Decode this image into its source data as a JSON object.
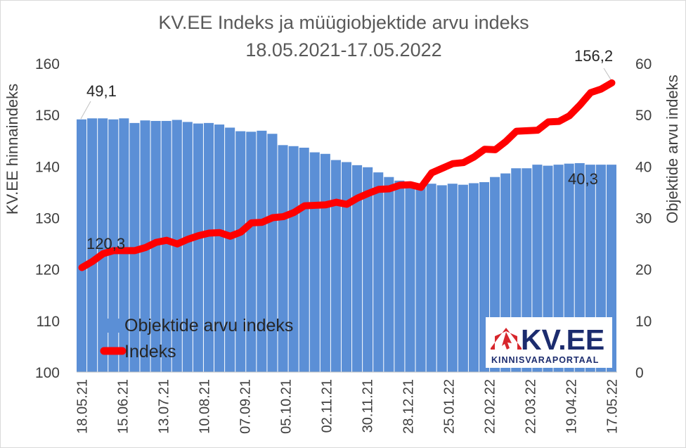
{
  "chart_data": {
    "type": "bar+line",
    "title": "KV.EE Indeks ja müügiobjektide arvu indeks",
    "subtitle": "18.05.2021-17.05.2022",
    "ylabel_left": "KV.EE hinnaindeks",
    "ylabel_right": "Objektide arvu indeks",
    "ylim_left": [
      100,
      160
    ],
    "ylim_right": [
      0,
      60
    ],
    "yticks_left": [
      "100",
      "110",
      "120",
      "130",
      "140",
      "150",
      "160"
    ],
    "yticks_right": [
      "0",
      "10",
      "20",
      "30",
      "40",
      "50",
      "60"
    ],
    "x_tick_labels": [
      "18.05.21",
      "15.06.21",
      "13.07.21",
      "10.08.21",
      "07.09.21",
      "05.10.21",
      "02.11.21",
      "30.11.21",
      "28.12.21",
      "25.01.22",
      "22.02.22",
      "22.03.22",
      "19.04.22",
      "17.05.22"
    ],
    "bar_series": {
      "name": "Objektide arvu indeks",
      "color": "#5b8fd6",
      "axis": "right",
      "values": [
        49.1,
        49.3,
        49.3,
        49.1,
        49.3,
        48.4,
        48.9,
        48.8,
        48.8,
        49.0,
        48.6,
        48.3,
        48.4,
        48.1,
        47.5,
        46.8,
        46.7,
        46.9,
        46.3,
        44.1,
        43.9,
        43.6,
        42.7,
        42.4,
        41.2,
        40.8,
        40.2,
        39.8,
        38.8,
        37.9,
        37.2,
        36.6,
        36.3,
        36.6,
        36.3,
        36.6,
        36.4,
        36.7,
        36.9,
        37.9,
        38.6,
        39.6,
        39.6,
        40.3,
        40.1,
        40.3,
        40.5,
        40.6,
        40.3,
        40.3,
        40.3
      ]
    },
    "line_series": {
      "name": "Indeks",
      "color": "#ff0000",
      "axis": "left",
      "values": [
        120.3,
        121.5,
        123.0,
        123.6,
        123.6,
        123.6,
        124.2,
        125.2,
        125.6,
        124.9,
        125.8,
        126.5,
        127.0,
        127.1,
        126.4,
        127.2,
        129.0,
        129.1,
        130.0,
        130.2,
        131.0,
        132.3,
        132.4,
        132.5,
        133.0,
        132.6,
        133.8,
        134.7,
        135.5,
        135.6,
        136.3,
        136.4,
        135.9,
        138.7,
        139.6,
        140.5,
        140.7,
        141.8,
        143.3,
        143.2,
        144.8,
        146.8,
        146.9,
        147.0,
        148.6,
        148.7,
        149.8,
        151.9,
        154.3,
        155.0,
        156.2
      ]
    },
    "annotations": {
      "bar_first": "49,1",
      "bar_last": "40,3",
      "line_first": "120,3",
      "line_last": "156,2"
    },
    "legend": {
      "position": "bottom-left",
      "bar_label": "Objektide arvu indeks",
      "line_label": "Indeks"
    },
    "grid": false
  },
  "logo": {
    "text": "KV.EE",
    "subtitle": "KINNISVARAPORTAAL",
    "brand_color": "#d7262c",
    "text_color": "#1c2c6e"
  }
}
